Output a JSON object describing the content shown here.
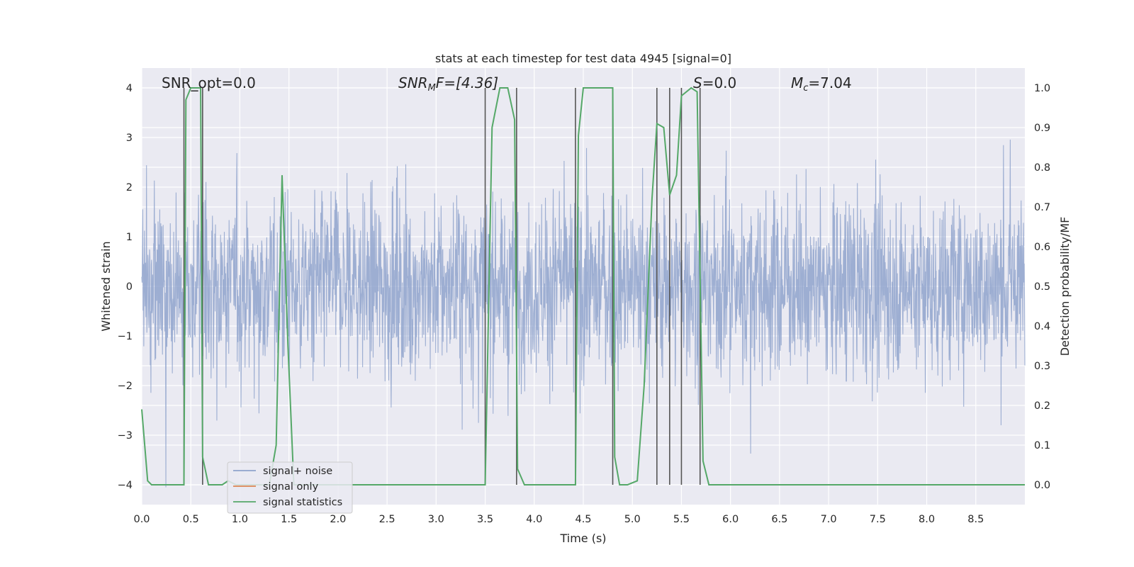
{
  "chart_data": {
    "type": "line",
    "title": "stats at each timestep for test data 4945 [signal=0]",
    "xlabel": "Time (s)",
    "ylabel_left": "Whitened strain",
    "ylabel_right": "Detection probability/MF",
    "xlim": [
      0.0,
      9.0
    ],
    "ylim_left": [
      -4.4,
      4.4
    ],
    "ylim_right": [
      -0.05,
      1.05
    ],
    "grid": true,
    "legend_placement": "lower left",
    "x_ticks": [
      "0.0",
      "0.5",
      "1.0",
      "1.5",
      "2.0",
      "2.5",
      "3.0",
      "3.5",
      "4.0",
      "4.5",
      "5.0",
      "5.5",
      "6.0",
      "6.5",
      "7.0",
      "7.5",
      "8.0",
      "8.5"
    ],
    "y_ticks_left": [
      "4",
      "3",
      "2",
      "1",
      "0",
      "−1",
      "−2",
      "−3",
      "−4"
    ],
    "y_ticks_right": [
      "1.0",
      "0.9",
      "0.8",
      "0.7",
      "0.6",
      "0.5",
      "0.4",
      "0.3",
      "0.2",
      "0.1",
      "0.0"
    ],
    "annotations": {
      "snr_opt": "SNR_opt=0.0",
      "snr_mf_base": "SNR",
      "snr_mf_sub": "M",
      "snr_mf_rest": "F=[4.36]",
      "s_italic": "S",
      "s_rest": "=0.0",
      "mc_base": "M",
      "mc_sub": "c",
      "mc_rest": "=7.04"
    },
    "series": [
      {
        "name": "signal+ noise",
        "color": "#8fa3cc",
        "description": "whitened strain noise, roughly Gaussian, amplitude envelope about ±3"
      },
      {
        "name": "signal only",
        "color": "#dd8452",
        "values": []
      },
      {
        "name": "signal statistics",
        "color": "#55a868",
        "x": [
          0.0,
          0.06,
          0.1,
          0.2,
          0.3,
          0.43,
          0.45,
          0.5,
          0.55,
          0.6,
          0.62,
          0.68,
          0.76,
          0.82,
          0.88,
          0.96,
          1.1,
          1.2,
          1.3,
          1.37,
          1.43,
          1.49,
          1.55,
          1.62,
          1.7,
          2.5,
          3.0,
          3.3,
          3.5,
          3.57,
          3.65,
          3.73,
          3.8,
          3.83,
          3.9,
          4.0,
          4.3,
          4.42,
          4.45,
          4.5,
          4.6,
          4.7,
          4.8,
          4.82,
          4.87,
          4.95,
          5.05,
          5.12,
          5.2,
          5.25,
          5.32,
          5.38,
          5.45,
          5.5,
          5.6,
          5.66,
          5.72,
          5.78,
          5.82,
          5.9,
          6.0,
          7.0,
          8.0,
          9.0
        ],
        "y": [
          0.19,
          0.01,
          0.0,
          0.0,
          0.0,
          0.0,
          0.97,
          1.0,
          1.0,
          1.0,
          0.07,
          0.0,
          0.0,
          0.0,
          0.01,
          0.0,
          0.0,
          0.0,
          0.0,
          0.1,
          0.78,
          0.35,
          0.0,
          0.0,
          0.0,
          0.0,
          0.0,
          0.0,
          0.0,
          0.9,
          1.0,
          1.0,
          0.92,
          0.04,
          0.0,
          0.0,
          0.0,
          0.0,
          0.88,
          1.0,
          1.0,
          1.0,
          1.0,
          0.07,
          0.0,
          0.0,
          0.01,
          0.25,
          0.72,
          0.91,
          0.9,
          0.73,
          0.78,
          0.98,
          1.0,
          0.99,
          0.06,
          0.0,
          0.0,
          0.0,
          0.0,
          0.0,
          0.0,
          0.0
        ]
      }
    ],
    "vertical_lines_x": [
      0.43,
      0.62,
      3.5,
      3.82,
      4.42,
      4.8,
      5.25,
      5.38,
      5.5,
      5.69
    ]
  },
  "legend": {
    "items": [
      {
        "label": "signal+ noise",
        "color": "#8fa3cc"
      },
      {
        "label": "signal only",
        "color": "#dd8452"
      },
      {
        "label": "signal statistics",
        "color": "#55a868"
      }
    ]
  }
}
